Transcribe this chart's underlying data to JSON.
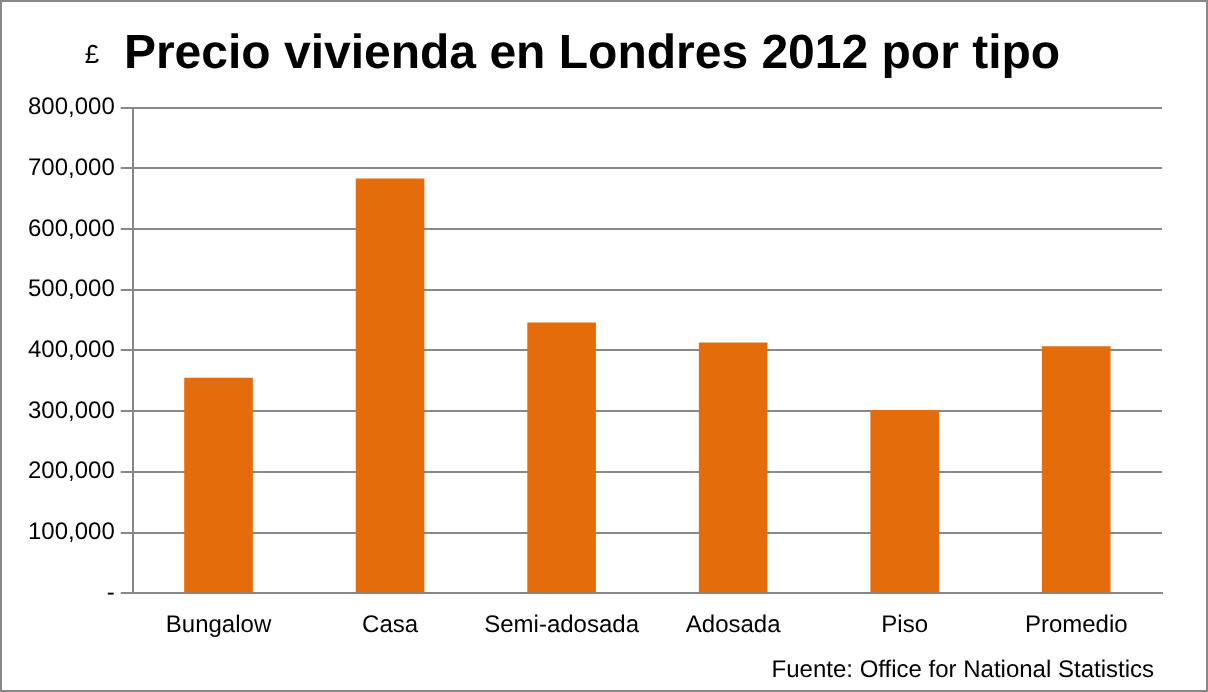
{
  "chart_data": {
    "type": "bar",
    "title": "Precio vivienda en Londres 2012 por tipo",
    "ylabel": "£",
    "categories": [
      "Bungalow",
      "Casa",
      "Semi-adosada",
      "Adosada",
      "Piso",
      "Promedio"
    ],
    "values": [
      355000,
      683000,
      446000,
      413000,
      302000,
      407000
    ],
    "color": "#e46c0a",
    "ylim": [
      0,
      800000
    ],
    "yticks": [
      {
        "value": 0,
        "label": "-"
      },
      {
        "value": 100000,
        "label": "100,000"
      },
      {
        "value": 200000,
        "label": "200,000"
      },
      {
        "value": 300000,
        "label": "300,000"
      },
      {
        "value": 400000,
        "label": "400,000"
      },
      {
        "value": 500000,
        "label": "500,000"
      },
      {
        "value": 600000,
        "label": "600,000"
      },
      {
        "value": 700000,
        "label": "700,000"
      },
      {
        "value": 800000,
        "label": "800,000"
      }
    ],
    "grid": "y",
    "legend": false,
    "annotations": [
      "Fuente: Office for National Statistics"
    ]
  }
}
